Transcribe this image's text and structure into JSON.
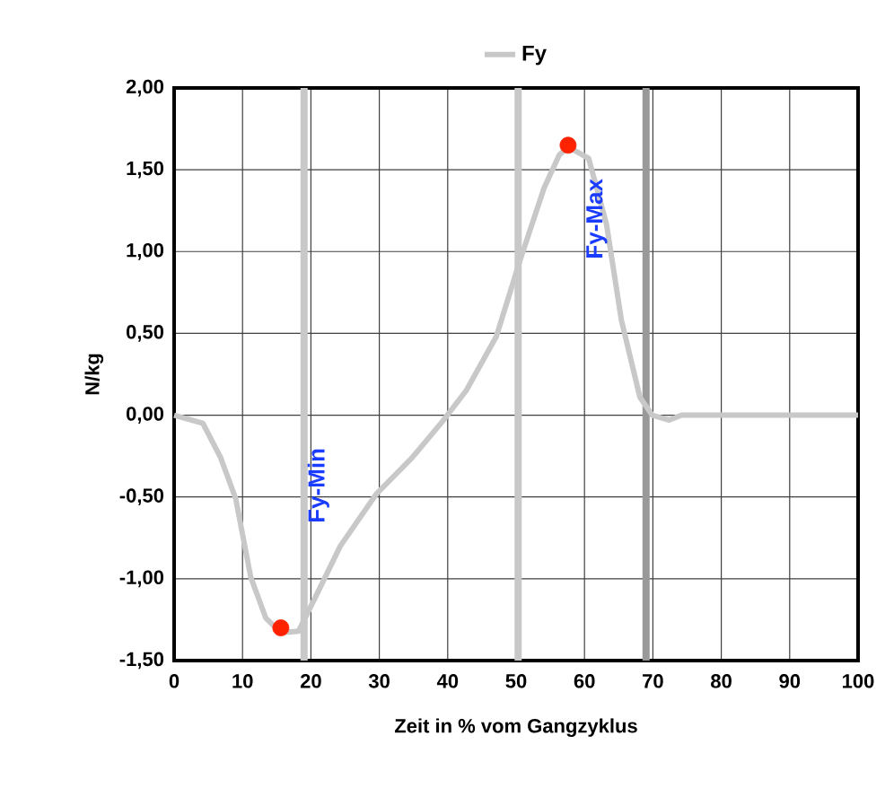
{
  "chart_data": {
    "type": "line",
    "xlabel": "Zeit in % vom Gangzyklus",
    "ylabel": "N/kg",
    "xlim": [
      0,
      100
    ],
    "ylim": [
      -1.5,
      2.0
    ],
    "xticks": [
      0,
      10,
      20,
      30,
      40,
      50,
      60,
      70,
      80,
      90,
      100
    ],
    "yticks": [
      {
        "value": -1.5,
        "label": "-1,50"
      },
      {
        "value": -1.0,
        "label": "-1,00"
      },
      {
        "value": -0.5,
        "label": "-0,50"
      },
      {
        "value": 0,
        "label": "0,00"
      },
      {
        "value": 0.5,
        "label": "0,50"
      },
      {
        "value": 1.0,
        "label": "1,00"
      },
      {
        "value": 1.5,
        "label": "1,50"
      },
      {
        "value": 2.0,
        "label": "2,00"
      }
    ],
    "grid": true,
    "legend": "top",
    "marker": "none",
    "line_style": "solid",
    "series": [
      {
        "name": "Fy",
        "color": "#c8c8c8",
        "x": [
          0,
          4.2,
          6.8,
          9,
          11.2,
          13.4,
          15.6,
          18.2,
          20.8,
          24.3,
          29.6,
          34.8,
          39.2,
          42.7,
          47.1,
          50.6,
          54.1,
          56.3,
          57.6,
          60.6,
          63.2,
          65.4,
          68.1,
          69.9,
          72.4,
          74.2,
          100
        ],
        "values": [
          0,
          -0.05,
          -0.26,
          -0.51,
          -0.99,
          -1.24,
          -1.33,
          -1.32,
          -1.1,
          -0.8,
          -0.48,
          -0.26,
          -0.04,
          0.15,
          0.48,
          0.95,
          1.39,
          1.59,
          1.64,
          1.57,
          1.17,
          0.58,
          0.11,
          0,
          -0.03,
          0,
          0
        ]
      },
      {
        "type": "scatter",
        "marker": "circle",
        "color": "#ff2200",
        "x": [
          15.6,
          57.6
        ],
        "values": [
          -1.3,
          1.65
        ]
      }
    ],
    "ref_lines": [
      {
        "axis": "x",
        "value": 19,
        "color": "#c8c8c8"
      },
      {
        "axis": "x",
        "value": 50.3,
        "color": "#c8c8c8"
      },
      {
        "axis": "x",
        "value": 69,
        "color": "#999999"
      }
    ],
    "annotations": [
      "Fy-Min",
      "Fy-Max"
    ]
  }
}
